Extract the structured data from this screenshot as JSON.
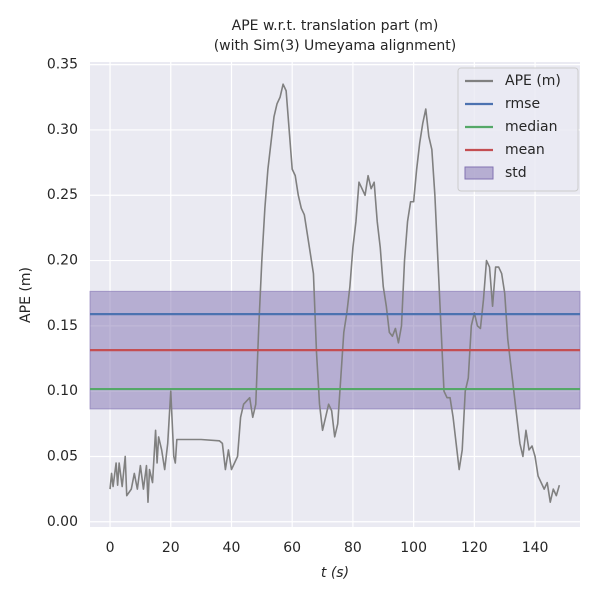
{
  "chart_data": {
    "type": "line",
    "title": [
      "APE w.r.t. translation part (m)",
      "(with Sim(3) Umeyama alignment)"
    ],
    "xlabel": "t (s)",
    "ylabel": "APE (m)",
    "xlim": [
      -6.6,
      154.8
    ],
    "ylim": [
      -0.004,
      0.352
    ],
    "xticks": [
      0,
      20,
      40,
      60,
      80,
      100,
      120,
      140
    ],
    "yticks": [
      {
        "value": 0,
        "label": "0.00"
      },
      0.05,
      {
        "value": 0.1,
        "label": "0.10"
      },
      0.15,
      {
        "value": 0.2,
        "label": "0.20"
      },
      0.25,
      {
        "value": 0.3,
        "label": "0.30"
      },
      0.35
    ],
    "grid": true,
    "legend": "upper right",
    "series": [
      {
        "name": "APE (m)",
        "color": "#808080",
        "x": [
          0,
          0.5,
          1,
          2,
          2.5,
          3,
          4,
          5,
          5.5,
          7,
          8,
          9,
          10,
          11,
          12,
          12.5,
          13,
          14,
          15,
          15.5,
          16,
          17,
          18,
          19,
          20,
          21,
          21.5,
          22,
          30,
          36,
          37,
          38,
          39,
          40,
          41,
          42,
          43,
          44,
          46,
          47,
          48,
          49,
          50,
          51,
          52,
          53,
          54,
          55,
          56,
          57,
          58,
          59,
          60,
          61,
          62,
          63,
          64,
          65,
          66,
          67,
          68,
          69,
          70,
          71,
          72,
          73,
          74,
          75,
          76,
          77,
          78,
          79,
          80,
          81,
          82,
          83,
          84,
          85,
          86,
          87,
          88,
          89,
          90,
          91,
          92,
          93,
          94,
          95,
          96,
          97,
          98,
          99,
          100,
          101,
          102,
          103,
          104,
          105,
          106,
          107,
          108,
          109,
          110,
          111,
          112,
          113,
          114,
          115,
          116,
          117,
          118,
          119,
          120,
          121,
          122,
          123,
          124,
          125,
          126,
          127,
          128,
          129,
          130,
          131,
          132,
          133,
          134,
          135,
          136,
          137,
          138,
          139,
          140,
          141,
          142,
          143,
          144,
          145,
          146,
          147,
          148
        ],
        "values": [
          0.025,
          0.037,
          0.027,
          0.045,
          0.028,
          0.045,
          0.027,
          0.05,
          0.02,
          0.025,
          0.037,
          0.025,
          0.043,
          0.025,
          0.043,
          0.015,
          0.04,
          0.03,
          0.07,
          0.045,
          0.065,
          0.055,
          0.04,
          0.06,
          0.1,
          0.05,
          0.045,
          0.063,
          0.063,
          0.062,
          0.06,
          0.04,
          0.055,
          0.04,
          0.045,
          0.05,
          0.08,
          0.09,
          0.095,
          0.08,
          0.09,
          0.15,
          0.2,
          0.24,
          0.27,
          0.29,
          0.31,
          0.32,
          0.325,
          0.335,
          0.33,
          0.3,
          0.27,
          0.265,
          0.25,
          0.24,
          0.235,
          0.22,
          0.205,
          0.19,
          0.13,
          0.09,
          0.07,
          0.08,
          0.09,
          0.085,
          0.065,
          0.075,
          0.11,
          0.145,
          0.16,
          0.18,
          0.21,
          0.23,
          0.26,
          0.255,
          0.25,
          0.265,
          0.255,
          0.26,
          0.23,
          0.21,
          0.18,
          0.165,
          0.145,
          0.142,
          0.148,
          0.137,
          0.15,
          0.2,
          0.23,
          0.245,
          0.245,
          0.27,
          0.29,
          0.305,
          0.316,
          0.295,
          0.285,
          0.25,
          0.2,
          0.15,
          0.1,
          0.095,
          0.095,
          0.08,
          0.06,
          0.04,
          0.055,
          0.1,
          0.11,
          0.15,
          0.16,
          0.15,
          0.148,
          0.17,
          0.2,
          0.195,
          0.165,
          0.195,
          0.195,
          0.19,
          0.175,
          0.14,
          0.12,
          0.1,
          0.08,
          0.06,
          0.05,
          0.07,
          0.055,
          0.058,
          0.05,
          0.035,
          0.03,
          0.025,
          0.03,
          0.015,
          0.025,
          0.02,
          0.028
        ]
      }
    ],
    "stats": [
      {
        "name": "rmse",
        "value": 0.159,
        "color": "#4c72b0"
      },
      {
        "name": "median",
        "value": 0.1016,
        "color": "#55a868"
      },
      {
        "name": "mean",
        "value": 0.1314,
        "color": "#c44e52"
      }
    ],
    "std": {
      "name": "std",
      "value": 0.045,
      "color": "#8172b2"
    }
  }
}
